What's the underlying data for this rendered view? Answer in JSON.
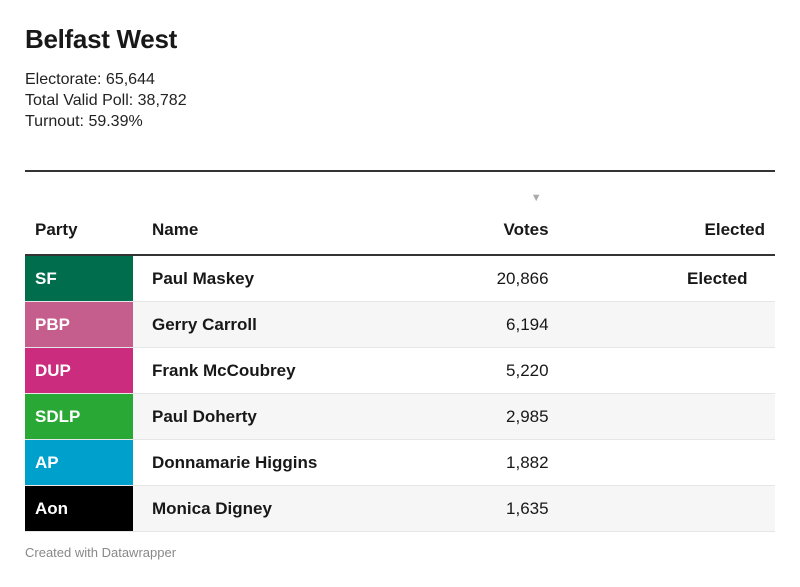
{
  "title": "Belfast West",
  "meta": [
    "Electorate: 65,644",
    "Total Valid Poll: 38,782",
    "Turnout: 59.39%"
  ],
  "footer": "Created with Datawrapper",
  "chart_data": {
    "type": "table",
    "columns": [
      "Party",
      "Name",
      "Votes",
      "Elected"
    ],
    "sort": {
      "column": "Votes",
      "order": "descending",
      "icon": "triangle-down-icon"
    },
    "rows": [
      {
        "party": "SF",
        "color": "#006e4c",
        "name": "Paul Maskey",
        "votes": "20,866",
        "elected": "Elected"
      },
      {
        "party": "PBP",
        "color": "#c55d8d",
        "name": "Gerry Carroll",
        "votes": "6,194",
        "elected": ""
      },
      {
        "party": "DUP",
        "color": "#cb2c7d",
        "name": "Frank McCoubrey",
        "votes": "5,220",
        "elected": ""
      },
      {
        "party": "SDLP",
        "color": "#2aa836",
        "name": "Paul Doherty",
        "votes": "2,985",
        "elected": ""
      },
      {
        "party": "AP",
        "color": "#00a0cc",
        "name": "Donnamarie Higgins",
        "votes": "1,882",
        "elected": ""
      },
      {
        "party": "Aon",
        "color": "#000000",
        "name": "Monica Digney",
        "votes": "1,635",
        "elected": ""
      }
    ]
  }
}
